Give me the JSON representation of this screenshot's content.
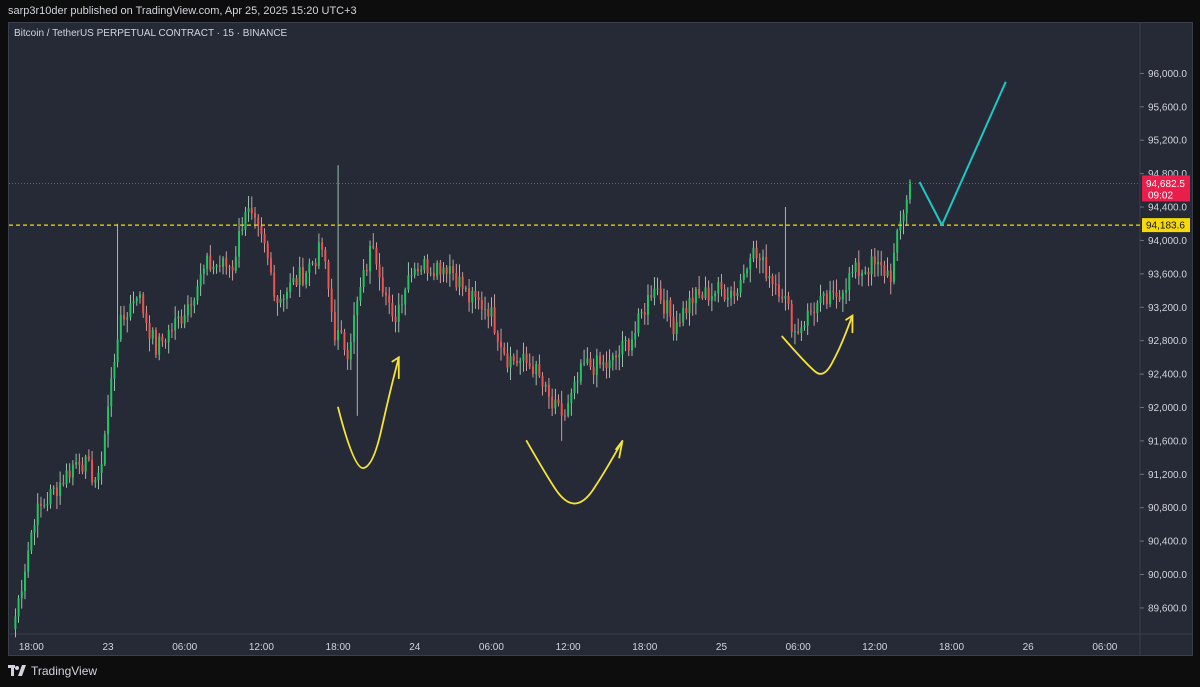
{
  "header": {
    "publisher_line": "sarp3r10der published on TradingView.com, Apr 25, 2025 15:20 UTC+3"
  },
  "chart_title": "Bitcoin / TetherUS PERPETUAL CONTRACT · 15 · BINANCE",
  "branding": {
    "logo_text": "TradingView"
  },
  "colors": {
    "up": "#26a69a",
    "up_bright": "#22c55e",
    "down": "#ef5350",
    "background": "#262a36",
    "axis_text": "#d1d4dc",
    "current_price_bg": "#e91e4a",
    "level_line": "#f5d90a",
    "projection": "#1fc7c3",
    "annotation": "#f5e23a"
  },
  "chart_data": {
    "type": "candlestick",
    "title": "Bitcoin / TetherUS PERPETUAL CONTRACT · 15 · BINANCE",
    "ylim": [
      89300,
      96400
    ],
    "y_ticks": [
      "96,000.0",
      "95,600.0",
      "95,200.0",
      "94,800.0",
      "94,400.0",
      "94,000.0",
      "93,600.0",
      "93,200.0",
      "92,800.0",
      "92,400.0",
      "92,000.0",
      "91,600.0",
      "91,200.0",
      "90,800.0",
      "90,400.0",
      "90,000.0",
      "89,600.0"
    ],
    "y_tick_values": [
      96000,
      95600,
      95200,
      94800,
      94400,
      94000,
      93600,
      93200,
      92800,
      92400,
      92000,
      91600,
      91200,
      90800,
      90400,
      90000,
      89600
    ],
    "x_ticks": [
      {
        "label": "18:00",
        "t": 5
      },
      {
        "label": "23",
        "t": 29
      },
      {
        "label": "06:00",
        "t": 53
      },
      {
        "label": "12:00",
        "t": 77
      },
      {
        "label": "18:00",
        "t": 101
      },
      {
        "label": "24",
        "t": 125
      },
      {
        "label": "06:00",
        "t": 149
      },
      {
        "label": "12:00",
        "t": 173
      },
      {
        "label": "18:00",
        "t": 197
      },
      {
        "label": "25",
        "t": 221
      },
      {
        "label": "06:00",
        "t": 245
      },
      {
        "label": "12:00",
        "t": 269
      },
      {
        "label": "18:00",
        "t": 293
      },
      {
        "label": "26",
        "t": 317
      },
      {
        "label": "06:00",
        "t": 341
      }
    ],
    "current_price": {
      "value": 94682.5,
      "label": "94,682.5",
      "countdown": "09:02"
    },
    "horizontal_level": {
      "value": 94183.6,
      "label": "94,183.6"
    },
    "anchors": [
      {
        "t": 0,
        "p": 89500
      },
      {
        "t": 6,
        "p": 90700
      },
      {
        "t": 12,
        "p": 91000
      },
      {
        "t": 20,
        "p": 91400
      },
      {
        "t": 26,
        "p": 91100
      },
      {
        "t": 32,
        "p": 92900
      },
      {
        "t": 38,
        "p": 93400
      },
      {
        "t": 44,
        "p": 92700
      },
      {
        "t": 52,
        "p": 93100
      },
      {
        "t": 60,
        "p": 93700
      },
      {
        "t": 68,
        "p": 93700
      },
      {
        "t": 72,
        "p": 94400
      },
      {
        "t": 78,
        "p": 93900
      },
      {
        "t": 82,
        "p": 93300
      },
      {
        "t": 90,
        "p": 93600
      },
      {
        "t": 96,
        "p": 93900
      },
      {
        "t": 100,
        "p": 92900
      },
      {
        "t": 104,
        "p": 92700
      },
      {
        "t": 108,
        "p": 93400
      },
      {
        "t": 112,
        "p": 94000
      },
      {
        "t": 118,
        "p": 93000
      },
      {
        "t": 124,
        "p": 93700
      },
      {
        "t": 130,
        "p": 93700
      },
      {
        "t": 136,
        "p": 93700
      },
      {
        "t": 142,
        "p": 93300
      },
      {
        "t": 148,
        "p": 93200
      },
      {
        "t": 154,
        "p": 92600
      },
      {
        "t": 162,
        "p": 92500
      },
      {
        "t": 168,
        "p": 92000
      },
      {
        "t": 172,
        "p": 91900
      },
      {
        "t": 178,
        "p": 92500
      },
      {
        "t": 186,
        "p": 92500
      },
      {
        "t": 194,
        "p": 92900
      },
      {
        "t": 200,
        "p": 93500
      },
      {
        "t": 206,
        "p": 93000
      },
      {
        "t": 212,
        "p": 93300
      },
      {
        "t": 220,
        "p": 93400
      },
      {
        "t": 226,
        "p": 93400
      },
      {
        "t": 230,
        "p": 93900
      },
      {
        "t": 234,
        "p": 93700
      },
      {
        "t": 240,
        "p": 93400
      },
      {
        "t": 244,
        "p": 92900
      },
      {
        "t": 250,
        "p": 93200
      },
      {
        "t": 256,
        "p": 93300
      },
      {
        "t": 262,
        "p": 93600
      },
      {
        "t": 268,
        "p": 93700
      },
      {
        "t": 274,
        "p": 93600
      },
      {
        "t": 277,
        "p": 94200
      },
      {
        "t": 280,
        "p": 94700
      }
    ],
    "wick_spikes": [
      {
        "t": 32,
        "high": 94200,
        "low": 92600
      },
      {
        "t": 101,
        "high": 94900,
        "low": 92800
      },
      {
        "t": 107,
        "high": 93000,
        "low": 91900
      },
      {
        "t": 171,
        "high": 92200,
        "low": 91600
      },
      {
        "t": 241,
        "high": 94400,
        "low": 93200
      },
      {
        "t": 281,
        "high": 95000,
        "low": 94200
      }
    ],
    "projection": [
      {
        "t": 283,
        "p": 94700
      },
      {
        "t": 290,
        "p": 94183.6
      },
      {
        "t": 310,
        "p": 95900
      }
    ]
  }
}
